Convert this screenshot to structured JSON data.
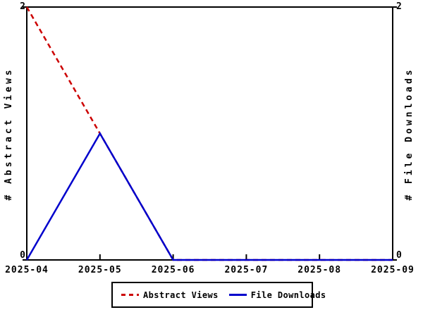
{
  "chart_data": {
    "type": "line",
    "x": [
      "2025-04",
      "2025-05",
      "2025-06",
      "2025-07",
      "2025-08",
      "2025-09"
    ],
    "series": [
      {
        "name": "Abstract Views",
        "values": [
          2,
          1,
          0,
          0,
          0,
          0
        ],
        "color": "#cc0000",
        "style": "dashed",
        "axis": "left"
      },
      {
        "name": "File Downloads",
        "values": [
          0,
          1,
          0,
          0,
          0,
          0
        ],
        "color": "#0000cc",
        "style": "solid",
        "axis": "right"
      }
    ],
    "left_axis": {
      "label": "# Abstract Views",
      "min": 0,
      "max": 2,
      "ticks": [
        0,
        2
      ]
    },
    "right_axis": {
      "label": "# File Downloads",
      "min": 0,
      "max": 2,
      "ticks": [
        0,
        2
      ]
    },
    "title": "",
    "grid": false,
    "legend_position": "bottom"
  },
  "axes": {
    "left_label": "# Abstract Views",
    "right_label": "# File Downloads",
    "left_top_tick": "2",
    "left_bottom_tick": "0",
    "right_top_tick": "2",
    "right_bottom_tick": "0"
  },
  "legend": {
    "items": [
      {
        "label": "Abstract Views",
        "color": "#cc0000",
        "style": "dashed"
      },
      {
        "label": "File Downloads",
        "color": "#0000cc",
        "style": "solid"
      }
    ]
  },
  "colors": {
    "abstract_views": "#cc0000",
    "file_downloads": "#0000cc",
    "axis": "#000000",
    "background": "#ffffff"
  }
}
